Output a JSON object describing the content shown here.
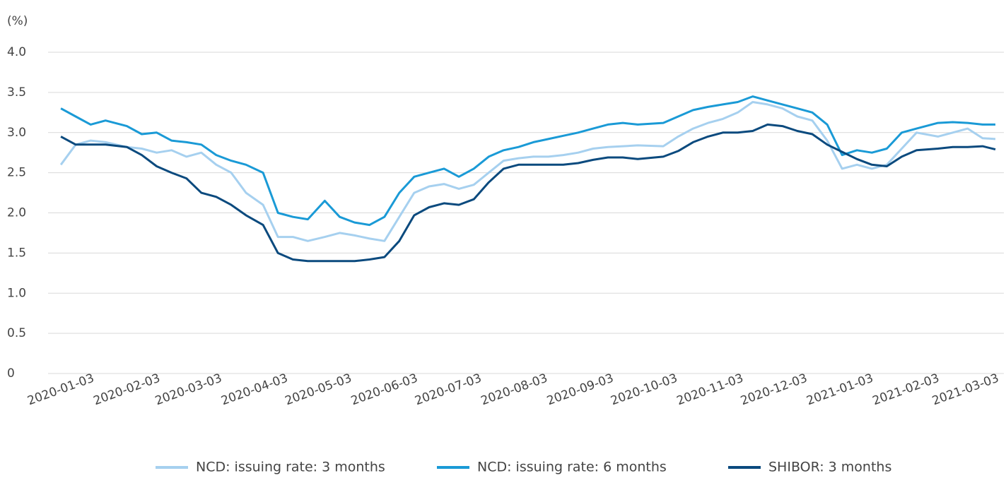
{
  "chart_data": {
    "type": "line",
    "y_label": "(%)",
    "x": [
      "2020-01-03",
      "2020-01-10",
      "2020-01-17",
      "2020-01-24",
      "2020-02-03",
      "2020-02-10",
      "2020-02-17",
      "2020-02-24",
      "2020-03-02",
      "2020-03-09",
      "2020-03-16",
      "2020-03-23",
      "2020-03-30",
      "2020-04-07",
      "2020-04-14",
      "2020-04-21",
      "2020-04-28",
      "2020-05-06",
      "2020-05-13",
      "2020-05-20",
      "2020-05-27",
      "2020-06-03",
      "2020-06-10",
      "2020-06-17",
      "2020-06-24",
      "2020-07-01",
      "2020-07-08",
      "2020-07-15",
      "2020-07-22",
      "2020-07-29",
      "2020-08-05",
      "2020-08-12",
      "2020-08-19",
      "2020-08-26",
      "2020-09-02",
      "2020-09-09",
      "2020-09-16",
      "2020-09-23",
      "2020-09-30",
      "2020-10-12",
      "2020-10-19",
      "2020-10-26",
      "2020-11-02",
      "2020-11-09",
      "2020-11-16",
      "2020-11-23",
      "2020-11-30",
      "2020-12-07",
      "2020-12-14",
      "2020-12-21",
      "2020-12-28",
      "2021-01-04",
      "2021-01-11",
      "2021-01-18",
      "2021-01-25",
      "2021-02-01",
      "2021-02-08",
      "2021-02-18",
      "2021-02-25",
      "2021-03-04",
      "2021-03-11",
      "2021-03-17"
    ],
    "series": [
      {
        "name": "NCD: issuing rate: 3 months",
        "color": "#a6d0ef",
        "values": [
          2.6,
          2.85,
          2.9,
          2.88,
          2.82,
          2.8,
          2.75,
          2.78,
          2.7,
          2.75,
          2.6,
          2.5,
          2.25,
          2.1,
          1.7,
          1.7,
          1.65,
          1.7,
          1.75,
          1.72,
          1.68,
          1.65,
          1.95,
          2.25,
          2.33,
          2.36,
          2.3,
          2.35,
          2.5,
          2.65,
          2.68,
          2.7,
          2.7,
          2.72,
          2.75,
          2.8,
          2.82,
          2.83,
          2.84,
          2.83,
          2.95,
          3.05,
          3.12,
          3.17,
          3.25,
          3.38,
          3.35,
          3.3,
          3.2,
          3.15,
          2.9,
          2.55,
          2.6,
          2.55,
          2.6,
          2.8,
          3.0,
          2.95,
          3.0,
          3.05,
          2.93,
          2.92
        ]
      },
      {
        "name": "NCD: issuing rate: 6 months",
        "color": "#1a9ad6",
        "values": [
          3.3,
          3.2,
          3.1,
          3.15,
          3.08,
          2.98,
          3.0,
          2.9,
          2.88,
          2.85,
          2.72,
          2.65,
          2.6,
          2.5,
          2.0,
          1.95,
          1.92,
          2.15,
          1.95,
          1.88,
          1.85,
          1.95,
          2.25,
          2.45,
          2.5,
          2.55,
          2.45,
          2.55,
          2.7,
          2.78,
          2.82,
          2.88,
          2.92,
          2.96,
          3.0,
          3.05,
          3.1,
          3.12,
          3.1,
          3.12,
          3.2,
          3.28,
          3.32,
          3.35,
          3.38,
          3.45,
          3.4,
          3.35,
          3.3,
          3.25,
          3.1,
          2.72,
          2.78,
          2.75,
          2.8,
          3.0,
          3.05,
          3.12,
          3.13,
          3.12,
          3.1,
          3.1
        ]
      },
      {
        "name": "SHIBOR: 3 months",
        "color": "#0b4a7e",
        "values": [
          2.95,
          2.85,
          2.85,
          2.85,
          2.82,
          2.72,
          2.58,
          2.5,
          2.43,
          2.25,
          2.2,
          2.1,
          1.97,
          1.85,
          1.5,
          1.42,
          1.4,
          1.4,
          1.4,
          1.4,
          1.42,
          1.45,
          1.65,
          1.97,
          2.07,
          2.12,
          2.1,
          2.17,
          2.38,
          2.55,
          2.6,
          2.6,
          2.6,
          2.6,
          2.62,
          2.66,
          2.69,
          2.69,
          2.67,
          2.7,
          2.77,
          2.88,
          2.95,
          3.0,
          3.0,
          3.02,
          3.1,
          3.08,
          3.02,
          2.98,
          2.85,
          2.76,
          2.67,
          2.6,
          2.58,
          2.7,
          2.78,
          2.8,
          2.82,
          2.82,
          2.83,
          2.79
        ]
      }
    ],
    "xlim": [
      "2019-12-28",
      "2021-03-21"
    ],
    "xticks": [
      "2020-01-03",
      "2020-02-03",
      "2020-03-03",
      "2020-04-03",
      "2020-05-03",
      "2020-06-03",
      "2020-07-03",
      "2020-08-03",
      "2020-09-03",
      "2020-10-03",
      "2020-11-03",
      "2020-12-03",
      "2021-01-03",
      "2021-02-03",
      "2021-03-03"
    ],
    "ylim": [
      0,
      4
    ],
    "yticks": [
      0,
      0.5,
      {
        "value": 1,
        "label": "1.0"
      },
      1.5,
      {
        "value": 2,
        "label": "2.0"
      },
      2.5,
      {
        "value": 3,
        "label": "3.0"
      },
      3.5,
      {
        "value": 4,
        "label": "4.0"
      }
    ],
    "grid": true,
    "legend": "bottom"
  }
}
